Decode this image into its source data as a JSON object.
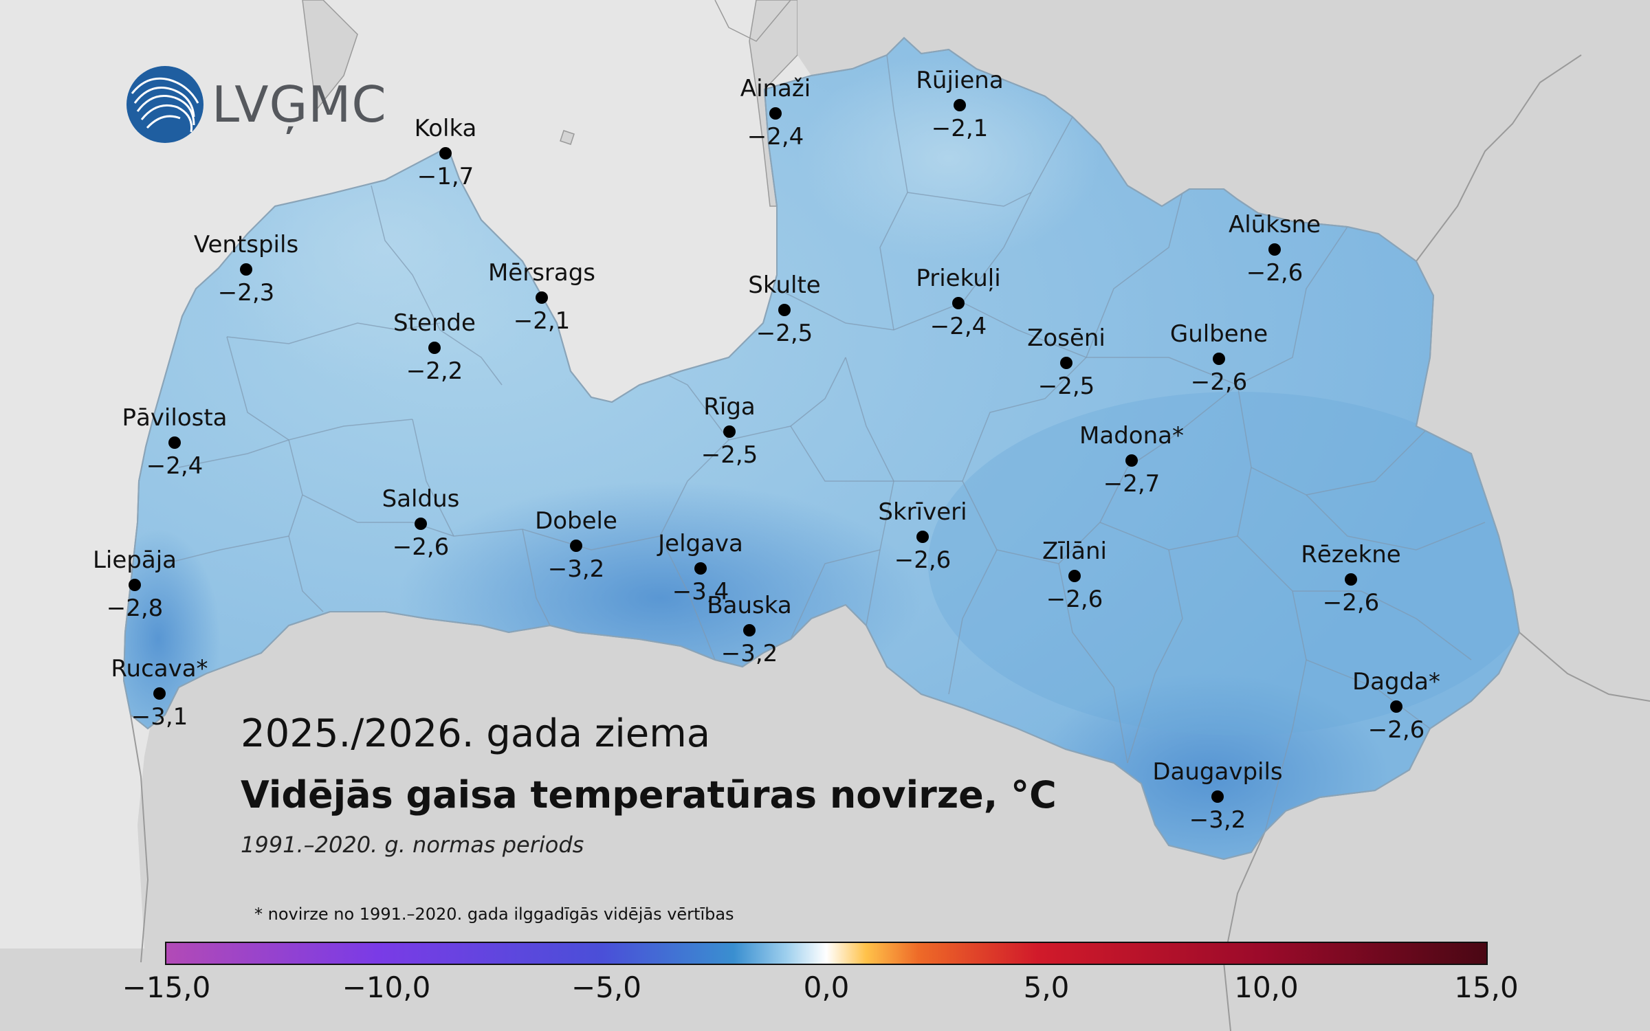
{
  "brand": {
    "logo_text": "LVĢMC",
    "logo_icon": "lvgmc-wave-globe-icon",
    "logo_color": "#1f5ea0"
  },
  "titles": {
    "season": "2025./2026. gada ziema",
    "main": "Vidējās gaisa temperatūras novirze, °C",
    "period": "1991.–2020. g. normas periods"
  },
  "footnote": "* novirze no 1991.–2020. gada ilggadīgās vidējās vērtības",
  "colors": {
    "land_light": "#9fcbe6",
    "land_dark": "#5a9ed6",
    "neighbors": "#d4d4d4",
    "sea": "#e6e6e6"
  },
  "colorbar": {
    "min": -15,
    "max": 15,
    "ticks": [
      {
        "value": -15,
        "label": "−15,0"
      },
      {
        "value": -10,
        "label": "−10,0"
      },
      {
        "value": -5,
        "label": "−5,0"
      },
      {
        "value": 0,
        "label": "0,0"
      },
      {
        "value": 5,
        "label": "5,0"
      },
      {
        "value": 10,
        "label": "10,0"
      },
      {
        "value": 15,
        "label": "15,0"
      }
    ]
  },
  "stations": [
    {
      "name": "Kolka",
      "value": "−1,7"
    },
    {
      "name": "Ventspils",
      "value": "−2,3"
    },
    {
      "name": "Mērsrags",
      "value": "−2,1"
    },
    {
      "name": "Stende",
      "value": "−2,2"
    },
    {
      "name": "Pāvilosta",
      "value": "−2,4"
    },
    {
      "name": "Saldus",
      "value": "−2,6"
    },
    {
      "name": "Dobele",
      "value": "−3,2"
    },
    {
      "name": "Liepāja",
      "value": "−2,8"
    },
    {
      "name": "Rucava*",
      "value": "−3,1"
    },
    {
      "name": "Ainaži",
      "value": "−2,4"
    },
    {
      "name": "Rūjiena",
      "value": "−2,1"
    },
    {
      "name": "Skulte",
      "value": "−2,5"
    },
    {
      "name": "Priekuļi",
      "value": "−2,4"
    },
    {
      "name": "Rīga",
      "value": "−2,5"
    },
    {
      "name": "Jelgava",
      "value": "−3,4"
    },
    {
      "name": "Bauska",
      "value": "−3,2"
    },
    {
      "name": "Skrīveri",
      "value": "−2,6"
    },
    {
      "name": "Alūksne",
      "value": "−2,6"
    },
    {
      "name": "Gulbene",
      "value": "−2,6"
    },
    {
      "name": "Zosēni",
      "value": "−2,5"
    },
    {
      "name": "Madona*",
      "value": "−2,7"
    },
    {
      "name": "Zīlāni",
      "value": "−2,6"
    },
    {
      "name": "Rēzekne",
      "value": "−2,6"
    },
    {
      "name": "Dagda*",
      "value": "−2,6"
    },
    {
      "name": "Daugavpils",
      "value": "−3,2"
    }
  ]
}
